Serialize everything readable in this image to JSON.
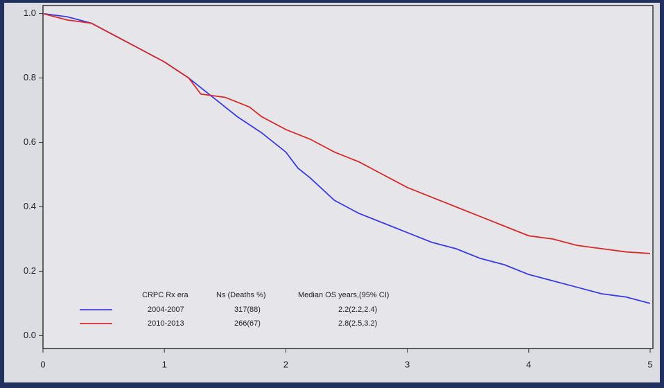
{
  "chart_data": {
    "type": "line",
    "xlim": [
      0,
      5
    ],
    "xticks": [
      0,
      1,
      2,
      3,
      4,
      5
    ],
    "ylim": [
      -0.04,
      1.025
    ],
    "yticks": [
      {
        "value": 0,
        "label": "0.0"
      },
      0.2,
      0.4,
      0.6,
      0.8,
      {
        "value": 1,
        "label": "1.0"
      }
    ],
    "legend_columns": [
      "CRPC Rx era",
      "Ns (Deaths %)",
      "Median OS years,(95% CI)"
    ],
    "series": [
      {
        "name": "2004-2007",
        "color": "#3a3adf",
        "n_deaths": "317(88)",
        "median_os": "2.2(2.2,2.4)",
        "x": [
          0,
          0.2,
          0.4,
          0.6,
          0.8,
          1.0,
          1.2,
          1.4,
          1.6,
          1.8,
          2.0,
          2.1,
          2.2,
          2.4,
          2.6,
          2.8,
          3.0,
          3.2,
          3.4,
          3.6,
          3.8,
          4.0,
          4.2,
          4.4,
          4.6,
          4.8,
          5.0
        ],
        "values": [
          1.0,
          0.99,
          0.97,
          0.93,
          0.89,
          0.85,
          0.8,
          0.74,
          0.68,
          0.63,
          0.57,
          0.52,
          0.49,
          0.42,
          0.38,
          0.35,
          0.32,
          0.29,
          0.27,
          0.24,
          0.22,
          0.19,
          0.17,
          0.15,
          0.13,
          0.12,
          0.1
        ]
      },
      {
        "name": "2010-2013",
        "color": "#d42a2a",
        "n_deaths": "266(67)",
        "median_os": "2.8(2.5,3.2)",
        "x": [
          0,
          0.2,
          0.4,
          0.6,
          0.8,
          1.0,
          1.2,
          1.3,
          1.5,
          1.7,
          1.8,
          2.0,
          2.2,
          2.4,
          2.6,
          2.8,
          3.0,
          3.2,
          3.4,
          3.6,
          3.8,
          4.0,
          4.2,
          4.4,
          4.6,
          4.8,
          5.0
        ],
        "values": [
          1.0,
          0.98,
          0.97,
          0.93,
          0.89,
          0.85,
          0.8,
          0.75,
          0.74,
          0.71,
          0.68,
          0.64,
          0.61,
          0.57,
          0.54,
          0.5,
          0.46,
          0.43,
          0.4,
          0.37,
          0.34,
          0.31,
          0.3,
          0.28,
          0.27,
          0.26,
          0.255
        ]
      }
    ]
  }
}
